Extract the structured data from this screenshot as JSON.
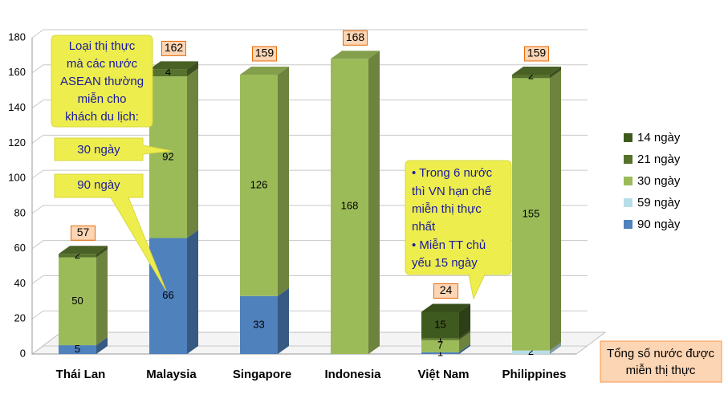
{
  "chart_data": {
    "type": "stacked-bar-3d",
    "categories": [
      "Thái Lan",
      "Malaysia",
      "Singapore",
      "Indonesia",
      "Việt Nam",
      "Philippines"
    ],
    "series": [
      {
        "name": "14 ngày",
        "color": "#3f5a1f",
        "values": [
          null,
          null,
          null,
          null,
          15,
          null
        ]
      },
      {
        "name": "21 ngày",
        "color": "#56722c",
        "values": [
          2,
          4,
          null,
          null,
          1,
          2
        ]
      },
      {
        "name": "30 ngày",
        "color": "#9bbb59",
        "values": [
          50,
          92,
          126,
          168,
          7,
          155
        ]
      },
      {
        "name": "59 ngày",
        "color": "#b7dee8",
        "values": [
          null,
          null,
          null,
          null,
          null,
          2
        ]
      },
      {
        "name": "90 ngày",
        "color": "#4f81bd",
        "values": [
          5,
          66,
          33,
          null,
          1,
          null
        ]
      }
    ],
    "totals": [
      57,
      162,
      159,
      168,
      24,
      159
    ],
    "ylim": [
      0,
      180
    ],
    "yticks": [
      0,
      20,
      40,
      60,
      80,
      100,
      120,
      140,
      160,
      180
    ],
    "grid": true,
    "legend": "right",
    "annotations": {
      "visa_note": [
        "Loại thị thực",
        "mà các nước",
        "ASEAN thường",
        "miễn cho",
        "khách du lịch:"
      ],
      "callout_30": "30 ngày",
      "callout_90": "90 ngày",
      "vn_note": [
        "• Trong 6 nước",
        "thì VN hạn chế",
        "miễn thị thực",
        "nhất",
        "• Miễn TT chủ",
        "yếu 15 ngày"
      ],
      "totals_note": [
        "Tổng số nước được",
        "miễn thị thực"
      ]
    }
  }
}
